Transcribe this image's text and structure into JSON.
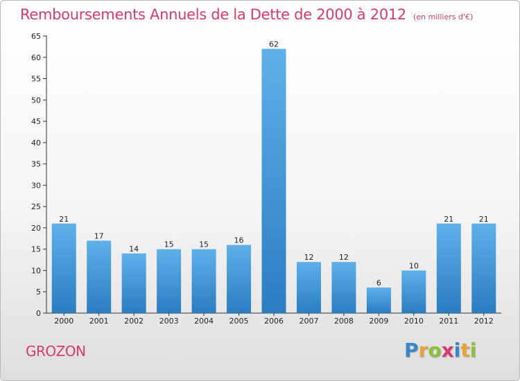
{
  "header": {
    "title": "Remboursements Annuels de la Dette de 2000 à 2012",
    "subtitle": "(en milliers d'€)"
  },
  "footer": {
    "commune": "GROZON",
    "brand": [
      "P",
      "r",
      "o",
      "x",
      "i",
      "t",
      "i"
    ]
  },
  "colors": {
    "title": "#d63a6e",
    "bar_top": "#5fb0ea",
    "bar_bottom": "#2a7dbf",
    "brand": [
      "#3a86c8",
      "#e8a33a",
      "#8fbf3a",
      "#d63a6e",
      "#3a86c8",
      "#e8a33a",
      "#8fbf3a"
    ]
  },
  "chart_data": {
    "type": "bar",
    "categories": [
      "2000",
      "2001",
      "2002",
      "2003",
      "2004",
      "2005",
      "2006",
      "2007",
      "2008",
      "2009",
      "2010",
      "2011",
      "2012"
    ],
    "values": [
      21,
      17,
      14,
      15,
      15,
      16,
      62,
      12,
      12,
      6,
      10,
      21,
      21
    ],
    "data_labels": [
      "21",
      "17",
      "14",
      "15",
      "15",
      "16",
      "62",
      "12",
      "12",
      "6",
      "10",
      "21",
      "21"
    ],
    "title": "Remboursements Annuels de la Dette de 2000 à 2012",
    "xlabel": "",
    "ylabel": "",
    "ylim": [
      0,
      65
    ],
    "yticks": [
      0,
      5,
      10,
      15,
      20,
      25,
      30,
      35,
      40,
      45,
      50,
      55,
      60,
      65
    ],
    "grid": false,
    "legend": "none"
  }
}
